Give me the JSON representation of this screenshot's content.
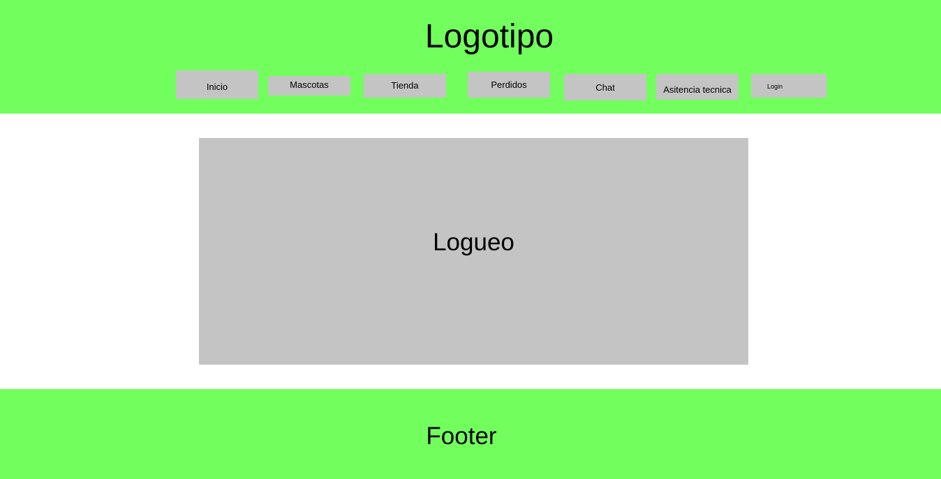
{
  "header": {
    "logo": "Logotipo",
    "nav": {
      "inicio": "Inicio",
      "mascotas": "Mascotas",
      "tienda": "Tienda",
      "perdidos": "Perdidos",
      "chat": "Chat",
      "asistencia": "Asitencia tecnica",
      "login": "Login"
    }
  },
  "main": {
    "panel_title": "Logueo"
  },
  "footer": {
    "text": "Footer"
  },
  "colors": {
    "header_bg": "#72ff5e",
    "footer_bg": "#72ff5e",
    "placeholder_gray": "#c4c4c4",
    "page_bg": "#ffffff"
  }
}
